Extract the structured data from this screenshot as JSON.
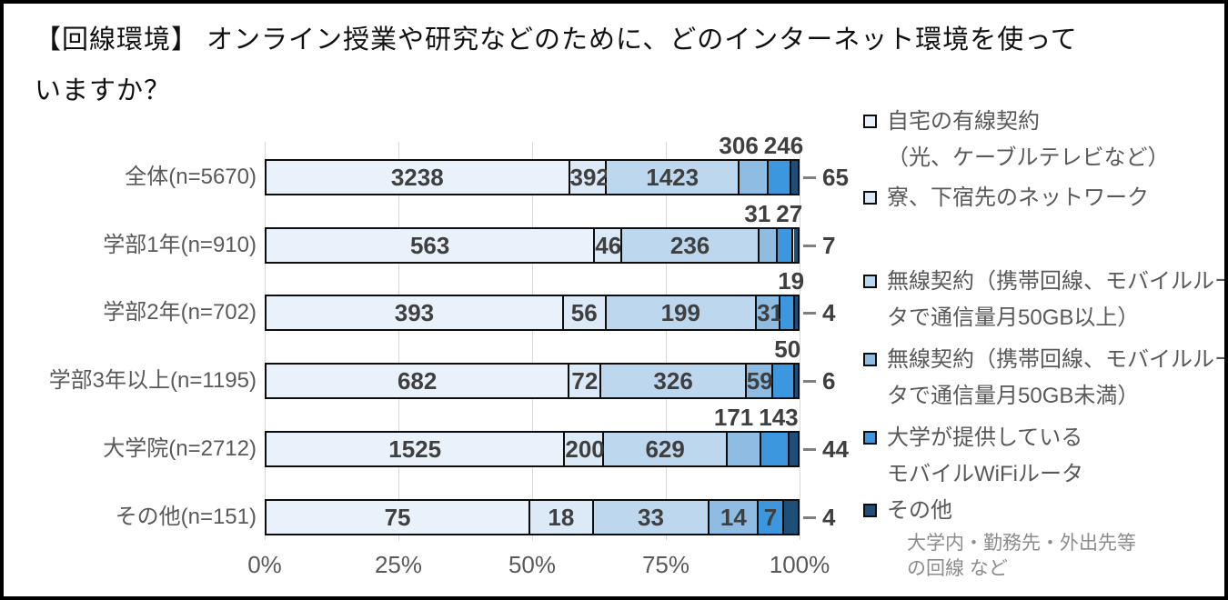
{
  "title": "【回線環境】 オンライン授業や研究などのために、どのインターネット環境を使っていますか？",
  "title_lines": [
    "【回線環境】 オンライン授業や研究などのために、どのインターネット環境を使って",
    "いますか？"
  ],
  "chart_data": {
    "type": "bar",
    "stacked": true,
    "orientation": "horizontal",
    "note": "segment widths are value/row_total as percent",
    "categories": [
      "全体(n=5670)",
      "学部1年(n=910)",
      "学部2年(n=702)",
      "学部3年以上(n=1195)",
      "大学院(n=2712)",
      "その他(n=151)"
    ],
    "row_totals": [
      5670,
      910,
      702,
      1195,
      2712,
      151
    ],
    "x_ticks": [
      "0%",
      "25%",
      "50%",
      "75%",
      "100%"
    ],
    "xlim": [
      0,
      100
    ],
    "grid": "vertical-light-gray",
    "series": [
      {
        "name": "自宅の有線契約（光、ケーブルテレビなど）",
        "color": "#E9F1FA",
        "values": [
          3238,
          563,
          393,
          682,
          1525,
          75
        ]
      },
      {
        "name": "寮、下宿先のネットワーク",
        "color": "#DCE9F6",
        "values": [
          392,
          46,
          56,
          72,
          200,
          18
        ]
      },
      {
        "name": "無線契約（携帯回線、モバイルルータで通信量月50GB以上）",
        "color": "#BDD7EE",
        "values": [
          1423,
          236,
          199,
          326,
          629,
          33
        ]
      },
      {
        "name": "無線契約（携帯回線、モバイルルータで通信量月50GB未満）",
        "color": "#8FBCE2",
        "values": [
          306,
          31,
          31,
          59,
          171,
          14
        ]
      },
      {
        "name": "大学が提供しているモバイルWiFiルータ",
        "color": "#3C97DE",
        "values": [
          246,
          27,
          19,
          50,
          143,
          7
        ]
      },
      {
        "name": "その他（大学内・勤務先・外出先等の回線 など）",
        "color": "#1F4E79",
        "values": [
          65,
          7,
          4,
          6,
          44,
          4
        ]
      }
    ],
    "label_placements": [
      [
        "in",
        "in",
        "in",
        "above",
        "above",
        "right"
      ],
      [
        "in",
        "in",
        "in",
        "above",
        "above",
        "right"
      ],
      [
        "in",
        "in",
        "in",
        "in",
        "above",
        "right"
      ],
      [
        "in",
        "in",
        "in",
        "in",
        "above",
        "right"
      ],
      [
        "in",
        "in",
        "in",
        "above",
        "above",
        "right"
      ],
      [
        "in",
        "in",
        "in",
        "in",
        "in",
        "right"
      ]
    ],
    "legend": {
      "position": "right",
      "items": [
        {
          "lines": [
            "自宅の有線契約",
            "（光、ケーブルテレビなど）"
          ],
          "color": "#E9F1FA"
        },
        {
          "lines": [
            "寮、下宿先のネットワーク"
          ],
          "color": "#DCE9F6"
        },
        {
          "lines": [
            "無線契約（携帯回線、モバイルルー",
            "タで通信量月50GB以上）"
          ],
          "color": "#BDD7EE"
        },
        {
          "lines": [
            "無線契約（携帯回線、モバイルルー",
            "タで通信量月50GB未満）"
          ],
          "color": "#8FBCE2"
        },
        {
          "lines": [
            "大学が提供している",
            "モバイルWiFiルータ"
          ],
          "color": "#3C97DE"
        },
        {
          "lines": [
            "その他"
          ],
          "color": "#1F4E79",
          "note_lines": [
            "大学内・勤務先・外出先等",
            "の回線 など"
          ]
        }
      ]
    }
  }
}
